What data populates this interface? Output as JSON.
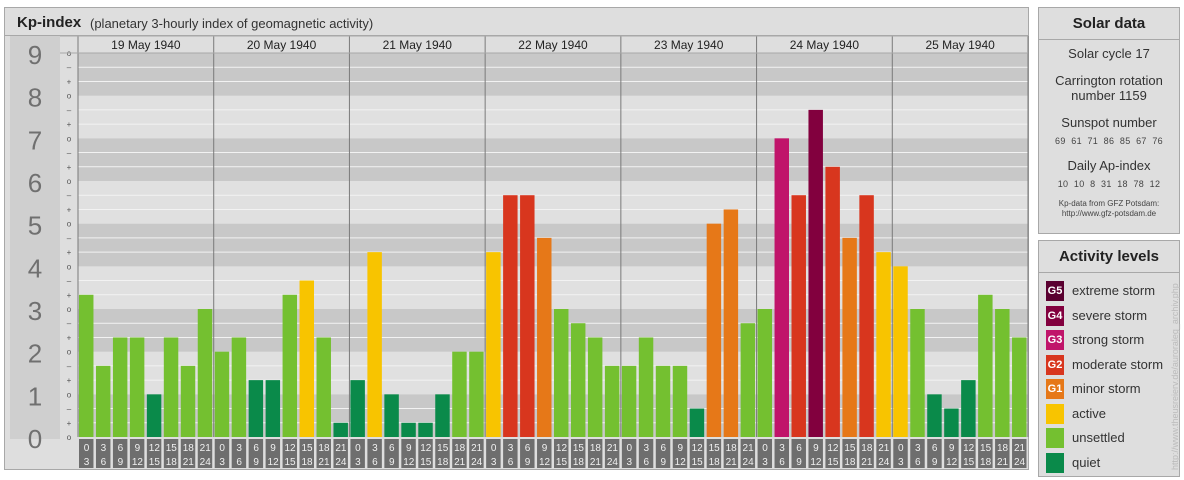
{
  "header": {
    "title": "Kp-index",
    "subtitle": "(planetary 3-hourly index of geomagnetic activity)"
  },
  "chart_data": {
    "type": "bar",
    "ylim": [
      0,
      9
    ],
    "y_ticks": [
      "0",
      "1",
      "2",
      "3",
      "4",
      "5",
      "6",
      "7",
      "8",
      "9"
    ],
    "sub_ticks": [
      "o",
      "+",
      "–"
    ],
    "days": [
      "19 May 1940",
      "20 May 1940",
      "21 May 1940",
      "22 May 1940",
      "23 May 1940",
      "24 May 1940",
      "25 May 1940"
    ],
    "interval_labels": [
      [
        "0",
        "3"
      ],
      [
        "3",
        "6"
      ],
      [
        "6",
        "9"
      ],
      [
        "9",
        "12"
      ],
      [
        "12",
        "15"
      ],
      [
        "15",
        "18"
      ],
      [
        "18",
        "21"
      ],
      [
        "21",
        "24"
      ]
    ],
    "values": [
      [
        3.333,
        1.667,
        2.333,
        2.333,
        1.0,
        2.333,
        1.667,
        3.0
      ],
      [
        2.0,
        2.333,
        1.333,
        1.333,
        3.333,
        3.667,
        2.333,
        0.333
      ],
      [
        1.333,
        4.333,
        1.0,
        0.333,
        0.333,
        1.0,
        2.0,
        2.0
      ],
      [
        4.333,
        5.667,
        5.667,
        4.667,
        3.0,
        2.667,
        2.333,
        1.667
      ],
      [
        1.667,
        2.333,
        1.667,
        1.667,
        0.667,
        5.0,
        5.333,
        2.667
      ],
      [
        3.0,
        7.0,
        5.667,
        7.667,
        6.333,
        4.667,
        5.667,
        4.333
      ],
      [
        4.0,
        3.0,
        1.0,
        0.667,
        1.333,
        3.333,
        3.0,
        2.333
      ]
    ],
    "level_colors": {
      "quiet": "#0a8a4a",
      "unsettled": "#74c030",
      "active": "#f8c400",
      "G1": "#e67818",
      "G2": "#d8361e",
      "G3": "#c0146a",
      "G4": "#82003e",
      "G5": "#5a0030"
    }
  },
  "solar": {
    "title": "Solar data",
    "cycle": "Solar cycle 17",
    "carrington_line1": "Carrington rotation",
    "carrington_line2": "number 1159",
    "sunspot_title": "Sunspot number",
    "sunspot_values": "69  61  71  86  85  67  76",
    "ap_title": "Daily Ap-index",
    "ap_values": "10  10  8  31  18  78  12",
    "source_line1": "Kp-data from GFZ Potsdam:",
    "source_line2": "http://www.gfz-potsdam.de"
  },
  "activity": {
    "title": "Activity levels",
    "levels": [
      {
        "code": "G5",
        "label": "extreme storm",
        "color": "#5a0030"
      },
      {
        "code": "G4",
        "label": "severe storm",
        "color": "#82003e"
      },
      {
        "code": "G3",
        "label": "strong storm",
        "color": "#c0146a"
      },
      {
        "code": "G2",
        "label": "moderate storm",
        "color": "#d8361e"
      },
      {
        "code": "G1",
        "label": "minor storm",
        "color": "#e67818"
      },
      {
        "code": "",
        "label": "active",
        "color": "#f8c400"
      },
      {
        "code": "",
        "label": "unsettled",
        "color": "#74c030"
      },
      {
        "code": "",
        "label": "quiet",
        "color": "#0a8a4a"
      }
    ]
  },
  "credit": "http://www.theusreierv.de/auroraleg_archiv.php"
}
